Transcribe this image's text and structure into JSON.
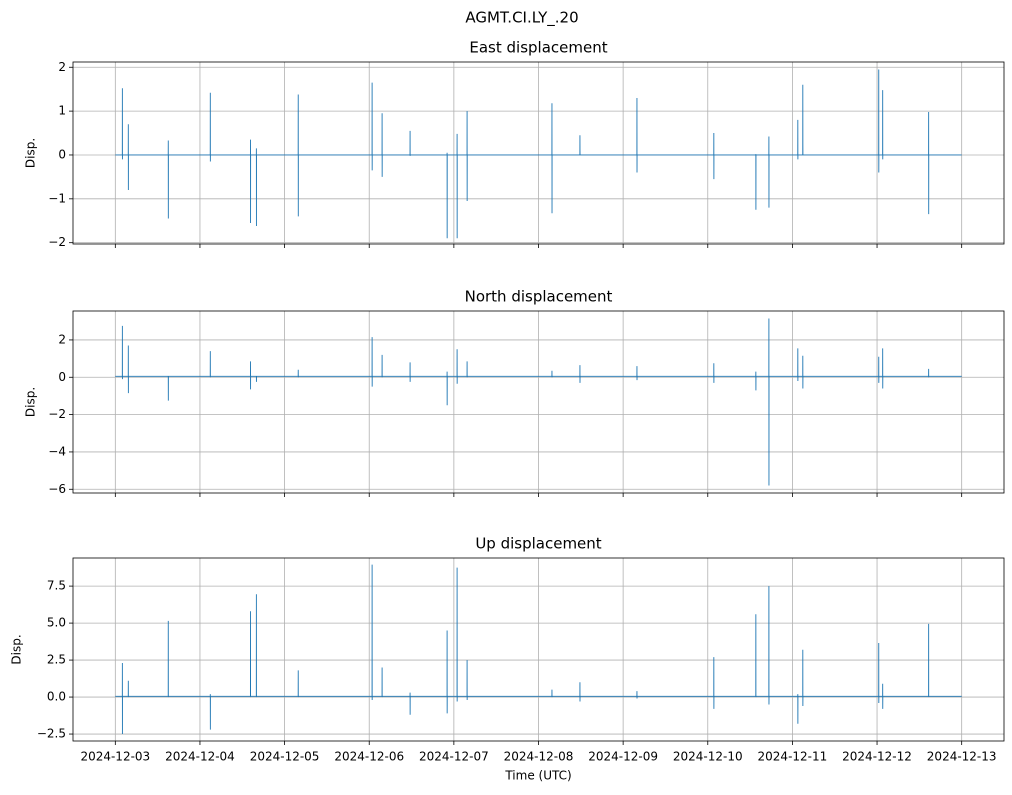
{
  "title": "AGMT.CI.LY_.20",
  "chart_data": [
    {
      "type": "line",
      "title": "East displacement",
      "ylabel": "Disp.",
      "grid": true,
      "xlim": [
        "2024-12-02T12:00",
        "2024-12-13T12:00"
      ],
      "xticks": [
        "2024-12-03",
        "2024-12-04",
        "2024-12-05",
        "2024-12-06",
        "2024-12-07",
        "2024-12-08",
        "2024-12-09",
        "2024-12-10",
        "2024-12-11",
        "2024-12-12",
        "2024-12-13"
      ],
      "ylim": [
        -2.03,
        2.12
      ],
      "yticks": [
        {
          "value": -2,
          "label": "−2"
        },
        {
          "value": -1,
          "label": "−1"
        },
        0,
        1,
        2
      ],
      "x": [
        "2024-12-03T00:00",
        "2024-12-03T01:59",
        "2024-12-03T02:00",
        "2024-12-03T02:01",
        "2024-12-03T02:02",
        "2024-12-03T03:40",
        "2024-12-03T03:41",
        "2024-12-03T03:42",
        "2024-12-03T03:43",
        "2024-12-03T15:00",
        "2024-12-03T15:01",
        "2024-12-03T15:02",
        "2024-12-03T15:03",
        "2024-12-04T02:55",
        "2024-12-04T02:56",
        "2024-12-04T02:57",
        "2024-12-04T02:58",
        "2024-12-04T14:19",
        "2024-12-04T14:20",
        "2024-12-04T14:21",
        "2024-12-04T14:22",
        "2024-12-04T15:59",
        "2024-12-04T16:00",
        "2024-12-04T16:01",
        "2024-12-04T16:02",
        "2024-12-05T03:51",
        "2024-12-05T03:52",
        "2024-12-05T03:53",
        "2024-12-05T03:54",
        "2024-12-06T00:48",
        "2024-12-06T00:49",
        "2024-12-06T00:50",
        "2024-12-06T00:51",
        "2024-12-06T03:38",
        "2024-12-06T03:39",
        "2024-12-06T03:40",
        "2024-12-06T03:41",
        "2024-12-06T11:34",
        "2024-12-06T11:35",
        "2024-12-06T11:36",
        "2024-12-06T11:37",
        "2024-12-06T22:04",
        "2024-12-06T22:05",
        "2024-12-06T22:06",
        "2024-12-06T22:07",
        "2024-12-07T00:54",
        "2024-12-07T00:55",
        "2024-12-07T00:56",
        "2024-12-07T00:57",
        "2024-12-07T03:44",
        "2024-12-07T03:45",
        "2024-12-07T03:46",
        "2024-12-07T03:47",
        "2024-12-08T03:48",
        "2024-12-08T03:49",
        "2024-12-08T03:50",
        "2024-12-08T03:51",
        "2024-12-08T11:44",
        "2024-12-08T11:45",
        "2024-12-08T11:46",
        "2024-12-08T11:47",
        "2024-12-09T03:54",
        "2024-12-09T03:55",
        "2024-12-09T03:56",
        "2024-12-09T03:57",
        "2024-12-10T01:42",
        "2024-12-10T01:43",
        "2024-12-10T01:44",
        "2024-12-10T01:45",
        "2024-12-10T13:37",
        "2024-12-10T13:38",
        "2024-12-10T13:39",
        "2024-12-10T13:40",
        "2024-12-10T17:19",
        "2024-12-10T17:20",
        "2024-12-10T17:21",
        "2024-12-10T17:22",
        "2024-12-11T01:31",
        "2024-12-11T01:32",
        "2024-12-11T01:33",
        "2024-12-11T01:34",
        "2024-12-11T02:56",
        "2024-12-11T02:57",
        "2024-12-11T02:58",
        "2024-12-11T02:59",
        "2024-12-12T00:28",
        "2024-12-12T00:29",
        "2024-12-12T00:30",
        "2024-12-12T00:31",
        "2024-12-12T01:35",
        "2024-12-12T01:36",
        "2024-12-12T01:37",
        "2024-12-12T01:38",
        "2024-12-12T14:37",
        "2024-12-12T14:38",
        "2024-12-12T14:39",
        "2024-12-12T14:40",
        "2024-12-13T00:00"
      ],
      "series": [
        {
          "color": "#1f77b4",
          "values": [
            0,
            0,
            1.52,
            -0.1,
            0,
            0,
            0.7,
            -0.8,
            0,
            0,
            0.33,
            -1.45,
            0,
            0,
            1.42,
            -0.15,
            0,
            0,
            0.35,
            -1.55,
            0,
            0,
            0.15,
            -1.62,
            0,
            0,
            1.38,
            -1.4,
            0,
            0,
            1.65,
            -0.35,
            0,
            0,
            0.95,
            -0.5,
            0,
            0,
            0.55,
            -0.02,
            0,
            0,
            0.05,
            -1.9,
            0,
            0,
            0.48,
            -1.9,
            0,
            0,
            1.0,
            -1.05,
            0,
            0,
            1.18,
            -1.33,
            0,
            0,
            0.45,
            0.1,
            0,
            0,
            1.3,
            -0.4,
            0,
            0,
            0.5,
            -0.55,
            0,
            0,
            0.02,
            -1.25,
            0,
            0,
            0.42,
            -1.2,
            0,
            0,
            0.8,
            -0.1,
            0,
            0,
            1.6,
            0.25,
            0,
            0,
            1.95,
            -0.4,
            0,
            0,
            1.48,
            -0.1,
            0,
            0,
            0.98,
            -1.35,
            0,
            0
          ]
        }
      ]
    },
    {
      "type": "line",
      "title": "North displacement",
      "ylabel": "Disp.",
      "grid": true,
      "xlim": [
        "2024-12-02T12:00",
        "2024-12-13T12:00"
      ],
      "xticks": [
        "2024-12-03",
        "2024-12-04",
        "2024-12-05",
        "2024-12-06",
        "2024-12-07",
        "2024-12-08",
        "2024-12-09",
        "2024-12-10",
        "2024-12-11",
        "2024-12-12",
        "2024-12-13"
      ],
      "ylim": [
        -6.2,
        3.55
      ],
      "yticks": [
        {
          "value": -6,
          "label": "−6"
        },
        {
          "value": -4,
          "label": "−4"
        },
        {
          "value": -2,
          "label": "−2"
        },
        0,
        2
      ],
      "x": [
        "2024-12-03T00:00",
        "2024-12-03T01:59",
        "2024-12-03T02:00",
        "2024-12-03T02:01",
        "2024-12-03T02:02",
        "2024-12-03T03:40",
        "2024-12-03T03:41",
        "2024-12-03T03:42",
        "2024-12-03T03:43",
        "2024-12-03T15:00",
        "2024-12-03T15:01",
        "2024-12-03T15:02",
        "2024-12-03T15:03",
        "2024-12-04T02:55",
        "2024-12-04T02:56",
        "2024-12-04T02:57",
        "2024-12-04T02:58",
        "2024-12-04T14:19",
        "2024-12-04T14:20",
        "2024-12-04T14:21",
        "2024-12-04T14:22",
        "2024-12-04T15:59",
        "2024-12-04T16:00",
        "2024-12-04T16:01",
        "2024-12-04T16:02",
        "2024-12-05T03:51",
        "2024-12-05T03:52",
        "2024-12-05T03:53",
        "2024-12-05T03:54",
        "2024-12-06T00:48",
        "2024-12-06T00:49",
        "2024-12-06T00:50",
        "2024-12-06T00:51",
        "2024-12-06T03:38",
        "2024-12-06T03:39",
        "2024-12-06T03:40",
        "2024-12-06T03:41",
        "2024-12-06T11:34",
        "2024-12-06T11:35",
        "2024-12-06T11:36",
        "2024-12-06T11:37",
        "2024-12-06T22:04",
        "2024-12-06T22:05",
        "2024-12-06T22:06",
        "2024-12-06T22:07",
        "2024-12-07T00:54",
        "2024-12-07T00:55",
        "2024-12-07T00:56",
        "2024-12-07T00:57",
        "2024-12-07T03:44",
        "2024-12-07T03:45",
        "2024-12-07T03:46",
        "2024-12-07T03:47",
        "2024-12-08T03:48",
        "2024-12-08T03:49",
        "2024-12-08T03:50",
        "2024-12-08T03:51",
        "2024-12-08T11:44",
        "2024-12-08T11:45",
        "2024-12-08T11:46",
        "2024-12-08T11:47",
        "2024-12-09T03:54",
        "2024-12-09T03:55",
        "2024-12-09T03:56",
        "2024-12-09T03:57",
        "2024-12-10T01:42",
        "2024-12-10T01:43",
        "2024-12-10T01:44",
        "2024-12-10T01:45",
        "2024-12-10T13:37",
        "2024-12-10T13:38",
        "2024-12-10T13:39",
        "2024-12-10T13:40",
        "2024-12-10T17:19",
        "2024-12-10T17:20",
        "2024-12-10T17:21",
        "2024-12-10T17:22",
        "2024-12-11T01:31",
        "2024-12-11T01:32",
        "2024-12-11T01:33",
        "2024-12-11T01:34",
        "2024-12-11T02:56",
        "2024-12-11T02:57",
        "2024-12-11T02:58",
        "2024-12-11T02:59",
        "2024-12-12T00:28",
        "2024-12-12T00:29",
        "2024-12-12T00:30",
        "2024-12-12T00:31",
        "2024-12-12T01:35",
        "2024-12-12T01:36",
        "2024-12-12T01:37",
        "2024-12-12T01:38",
        "2024-12-12T14:37",
        "2024-12-12T14:38",
        "2024-12-12T14:39",
        "2024-12-12T14:40",
        "2024-12-13T00:00"
      ],
      "series": [
        {
          "color": "#1f77b4",
          "values": [
            0.05,
            0.05,
            2.75,
            -0.1,
            0.05,
            0.05,
            1.7,
            -0.85,
            0.05,
            0.05,
            0.05,
            -1.25,
            0.05,
            0.05,
            1.4,
            0,
            0.05,
            0.05,
            0.85,
            -0.65,
            0.05,
            0.05,
            0.05,
            -0.25,
            0.05,
            0.05,
            0.4,
            0,
            0.05,
            0.05,
            2.15,
            -0.5,
            0.05,
            0.05,
            1.2,
            0,
            0.05,
            0.05,
            0.8,
            -0.25,
            0.05,
            0.05,
            0.3,
            -1.5,
            0.05,
            0.05,
            1.5,
            -0.35,
            0.05,
            0.05,
            0.85,
            0,
            0.05,
            0.05,
            0.35,
            0,
            0.05,
            0.05,
            0.65,
            -0.3,
            0.05,
            0.05,
            0.6,
            -0.15,
            0.05,
            0.05,
            0.75,
            -0.3,
            0.05,
            0.05,
            0.3,
            -0.7,
            0.05,
            0.05,
            3.15,
            -5.8,
            0.05,
            0.05,
            1.55,
            -0.2,
            0.05,
            0.05,
            1.15,
            -0.6,
            0.05,
            0.05,
            1.1,
            -0.3,
            0.05,
            0.05,
            1.55,
            -0.6,
            0.05,
            0.05,
            0.45,
            0,
            0.05,
            0.05
          ]
        }
      ]
    },
    {
      "type": "line",
      "title": "Up displacement",
      "ylabel": "Disp.",
      "xlabel": "Time (UTC)",
      "grid": true,
      "xlim": [
        "2024-12-02T12:00",
        "2024-12-13T12:00"
      ],
      "xticks": [
        "2024-12-03",
        "2024-12-04",
        "2024-12-05",
        "2024-12-06",
        "2024-12-07",
        "2024-12-08",
        "2024-12-09",
        "2024-12-10",
        "2024-12-11",
        "2024-12-12",
        "2024-12-13"
      ],
      "ylim": [
        -2.97,
        9.4
      ],
      "yticks": [
        {
          "value": -2.5,
          "label": "−2.5"
        },
        {
          "value": 0,
          "label": "0.0"
        },
        2.5,
        {
          "value": 5,
          "label": "5.0"
        },
        7.5
      ],
      "x": [
        "2024-12-03T00:00",
        "2024-12-03T01:59",
        "2024-12-03T02:00",
        "2024-12-03T02:01",
        "2024-12-03T02:02",
        "2024-12-03T03:40",
        "2024-12-03T03:41",
        "2024-12-03T03:42",
        "2024-12-03T03:43",
        "2024-12-03T15:00",
        "2024-12-03T15:01",
        "2024-12-03T15:02",
        "2024-12-03T15:03",
        "2024-12-04T02:55",
        "2024-12-04T02:56",
        "2024-12-04T02:57",
        "2024-12-04T02:58",
        "2024-12-04T14:19",
        "2024-12-04T14:20",
        "2024-12-04T14:21",
        "2024-12-04T14:22",
        "2024-12-04T15:59",
        "2024-12-04T16:00",
        "2024-12-04T16:01",
        "2024-12-04T16:02",
        "2024-12-05T03:51",
        "2024-12-05T03:52",
        "2024-12-05T03:53",
        "2024-12-05T03:54",
        "2024-12-06T00:48",
        "2024-12-06T00:49",
        "2024-12-06T00:50",
        "2024-12-06T00:51",
        "2024-12-06T03:38",
        "2024-12-06T03:39",
        "2024-12-06T03:40",
        "2024-12-06T03:41",
        "2024-12-06T11:34",
        "2024-12-06T11:35",
        "2024-12-06T11:36",
        "2024-12-06T11:37",
        "2024-12-06T22:04",
        "2024-12-06T22:05",
        "2024-12-06T22:06",
        "2024-12-06T22:07",
        "2024-12-07T00:54",
        "2024-12-07T00:55",
        "2024-12-07T00:56",
        "2024-12-07T00:57",
        "2024-12-07T03:44",
        "2024-12-07T03:45",
        "2024-12-07T03:46",
        "2024-12-07T03:47",
        "2024-12-08T03:48",
        "2024-12-08T03:49",
        "2024-12-08T03:50",
        "2024-12-08T03:51",
        "2024-12-08T11:44",
        "2024-12-08T11:45",
        "2024-12-08T11:46",
        "2024-12-08T11:47",
        "2024-12-09T03:54",
        "2024-12-09T03:55",
        "2024-12-09T03:56",
        "2024-12-09T03:57",
        "2024-12-10T01:42",
        "2024-12-10T01:43",
        "2024-12-10T01:44",
        "2024-12-10T01:45",
        "2024-12-10T13:37",
        "2024-12-10T13:38",
        "2024-12-10T13:39",
        "2024-12-10T13:40",
        "2024-12-10T17:19",
        "2024-12-10T17:20",
        "2024-12-10T17:21",
        "2024-12-10T17:22",
        "2024-12-11T01:31",
        "2024-12-11T01:32",
        "2024-12-11T01:33",
        "2024-12-11T01:34",
        "2024-12-11T02:56",
        "2024-12-11T02:57",
        "2024-12-11T02:58",
        "2024-12-11T02:59",
        "2024-12-12T00:28",
        "2024-12-12T00:29",
        "2024-12-12T00:30",
        "2024-12-12T00:31",
        "2024-12-12T01:35",
        "2024-12-12T01:36",
        "2024-12-12T01:37",
        "2024-12-12T01:38",
        "2024-12-12T14:37",
        "2024-12-12T14:38",
        "2024-12-12T14:39",
        "2024-12-12T14:40",
        "2024-12-13T00:00"
      ],
      "series": [
        {
          "color": "#1f77b4",
          "values": [
            0.05,
            0.05,
            2.3,
            -2.5,
            0.05,
            0.05,
            1.1,
            0,
            0.05,
            0.05,
            5.15,
            0,
            0.05,
            0.05,
            0.2,
            -2.2,
            0.05,
            0.05,
            5.8,
            0,
            0.05,
            0.05,
            6.95,
            0,
            0.05,
            0.05,
            1.8,
            0,
            0.05,
            0.05,
            8.95,
            -0.2,
            0.05,
            0.05,
            2.0,
            0,
            0.05,
            0.05,
            0.3,
            -1.2,
            0.05,
            0.05,
            4.5,
            -1.1,
            0.05,
            0.05,
            8.75,
            -0.3,
            0.05,
            0.05,
            2.5,
            -0.2,
            0.05,
            0.05,
            0.5,
            0,
            0.05,
            0.05,
            1.0,
            -0.3,
            0.05,
            0.05,
            0.4,
            -0.1,
            0.05,
            0.05,
            2.7,
            -0.8,
            0.05,
            0.05,
            5.6,
            0,
            0.05,
            0.05,
            7.5,
            -0.5,
            0.05,
            0.05,
            0.2,
            -1.8,
            0.05,
            0.05,
            3.2,
            -0.6,
            0.05,
            0.05,
            3.65,
            -0.4,
            0.05,
            0.05,
            0.9,
            -0.8,
            0.05,
            0.05,
            4.95,
            0,
            0.05,
            0.05
          ]
        }
      ]
    }
  ]
}
